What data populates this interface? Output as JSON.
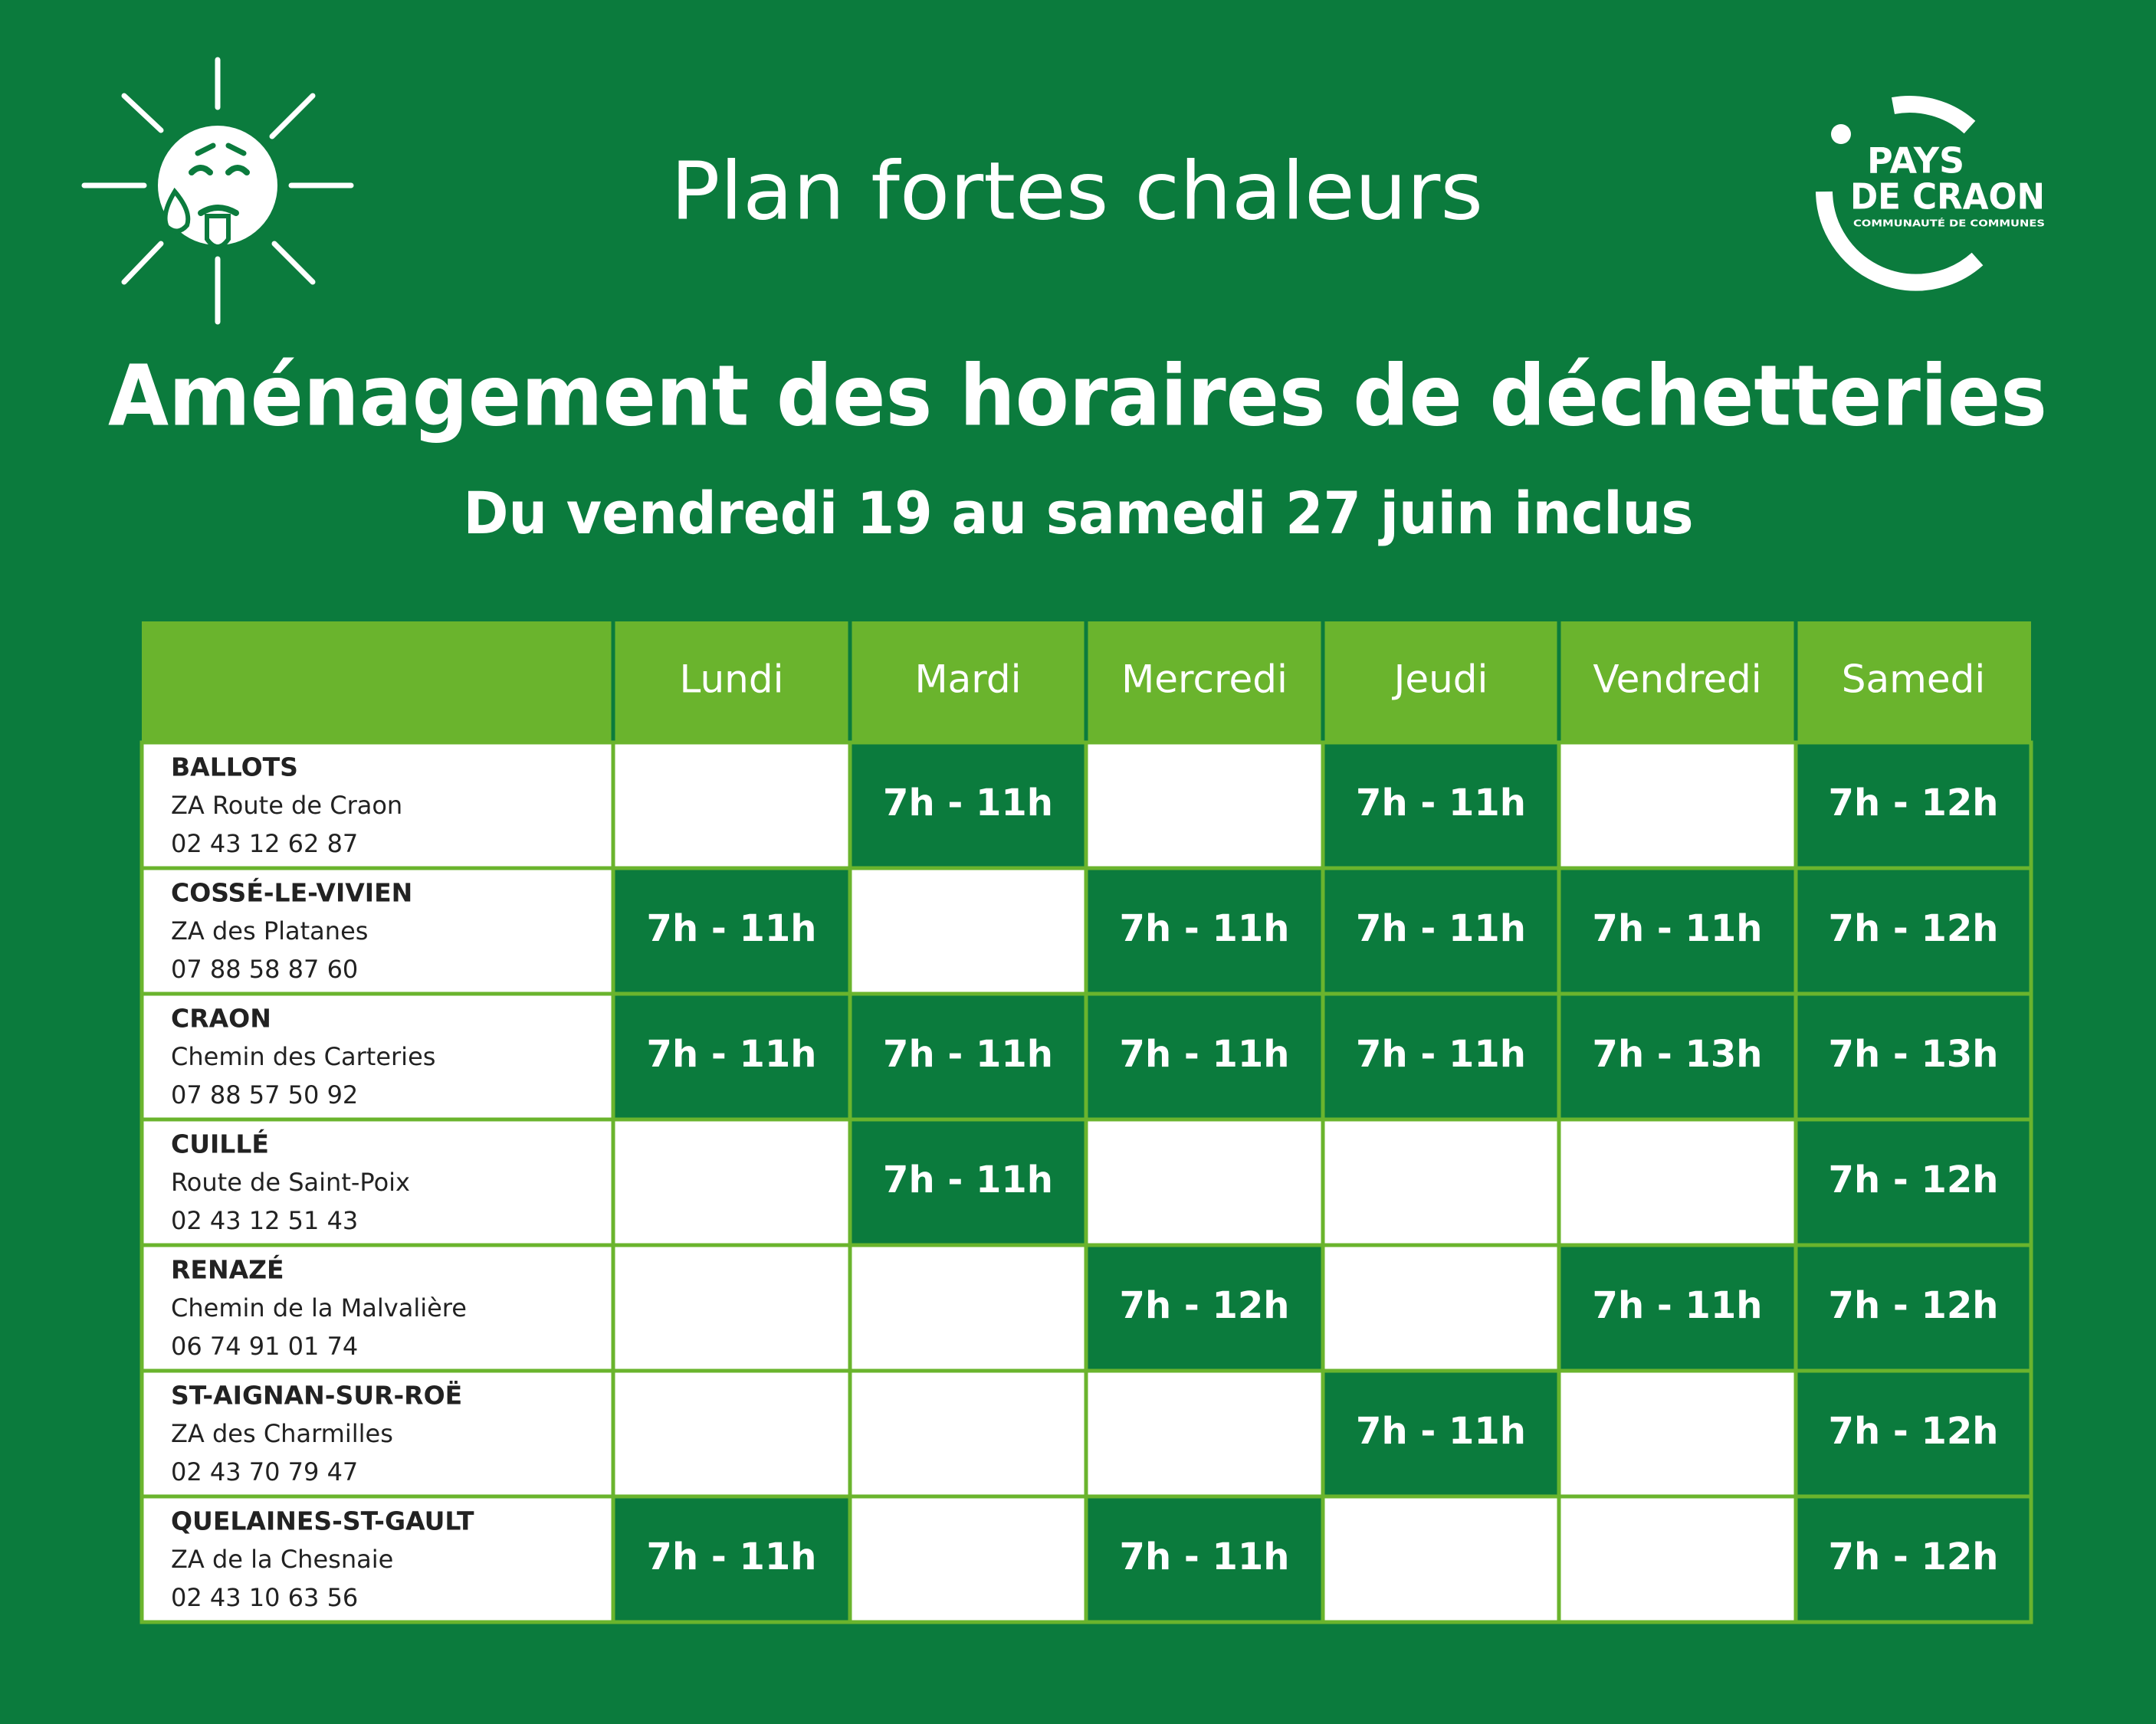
{
  "header": {
    "title": "Plan fortes chaleurs",
    "heading": "Aménagement des horaires de déchetteries",
    "subtitle": "Du vendredi 19 au samedi 27 juin inclus"
  },
  "logo": {
    "line1": "PAYS",
    "line2": "DE CRAON",
    "tagline": "COMMUNAUTÉ DE COMMUNES"
  },
  "table": {
    "columns": [
      "Lundi",
      "Mardi",
      "Mercredi",
      "Jeudi",
      "Vendredi",
      "Samedi"
    ],
    "rows": [
      {
        "name": "BALLOTS",
        "address": "ZA Route de Craon",
        "phone": "02 43 12 62 87",
        "hours": [
          null,
          "7h - 11h",
          null,
          "7h - 11h",
          null,
          "7h - 12h"
        ]
      },
      {
        "name": "COSSÉ-LE-VIVIEN",
        "address": "ZA des Platanes",
        "phone": "07 88 58 87 60",
        "hours": [
          "7h - 11h",
          null,
          "7h - 11h",
          "7h - 11h",
          "7h - 11h",
          "7h - 12h"
        ]
      },
      {
        "name": "CRAON",
        "address": "Chemin des Carteries",
        "phone": "07 88 57 50 92",
        "hours": [
          "7h - 11h",
          "7h - 11h",
          "7h - 11h",
          "7h - 11h",
          "7h - 13h",
          "7h - 13h"
        ]
      },
      {
        "name": "CUILLÉ",
        "address": "Route de Saint-Poix",
        "phone": "02 43 12 51 43",
        "hours": [
          null,
          "7h - 11h",
          null,
          null,
          null,
          "7h - 12h"
        ]
      },
      {
        "name": "RENAZÉ",
        "address": "Chemin de la Malvalière",
        "phone": "06 74 91 01 74",
        "hours": [
          null,
          null,
          "7h - 12h",
          null,
          "7h - 11h",
          "7h - 12h"
        ]
      },
      {
        "name": "ST-AIGNAN-SUR-ROË",
        "address": "ZA des Charmilles",
        "phone": "02 43 70 79 47",
        "hours": [
          null,
          null,
          null,
          "7h - 11h",
          null,
          "7h - 12h"
        ]
      },
      {
        "name": "QUELAINES-ST-GAULT",
        "address": "ZA de la Chesnaie",
        "phone": "02 43 10 63 56",
        "hours": [
          "7h - 11h",
          null,
          "7h - 11h",
          null,
          null,
          "7h - 12h"
        ]
      }
    ]
  }
}
